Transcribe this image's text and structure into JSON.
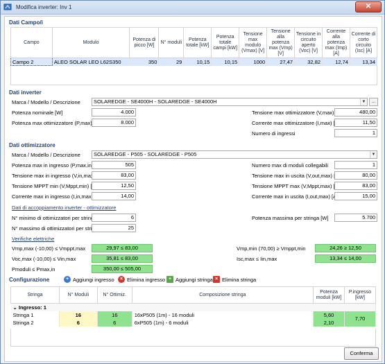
{
  "window": {
    "title": "Modifica inverter: Inv 1",
    "close_symbol": "✕"
  },
  "campo": {
    "section_title": "Dati Campo/i",
    "columns": [
      "Campo",
      "Modulo",
      "Potenza di picco [W]",
      "N° moduli",
      "Potenza totale [kW]",
      "Potenza totale campi [kW]",
      "Tensione max modulo (Vmax) [V]",
      "Tensione alla potenza max (Vmp) [V]",
      "Tensione in circuito aperto (Voc) [V]",
      "Corrente alla potenza max (Imp) [A]",
      "Corrente di corto circuito (Isc) [A]"
    ],
    "rows": [
      [
        "Campo 2",
        "ALEO SOLAR LEO L62S350",
        "350",
        "29",
        "10,15",
        "10,15",
        "1000",
        "27,47",
        "32,82",
        "12,74",
        "13,34"
      ]
    ]
  },
  "inverter": {
    "section_title": "Dati inverter",
    "brand_label": "Marca / Modello / Descrizione",
    "brand_value": "SOLAREDGE - SE4000H - SOLAREDGE - SE4000H",
    "dots": "...",
    "potenza_nominale_label": "Potenza nominale [W]",
    "potenza_nominale": "4.000",
    "potenza_max_label": "Potenza max ottimizzatore (P,max) [W]",
    "potenza_max": "8.000",
    "tensione_max_label": "Tensione max ottimizzatore (V,max) [V]",
    "tensione_max": "480,00",
    "corrente_max_label": "Corrente max ottimizzatore (I,max) [A]",
    "corrente_max": "11,50",
    "ingressi_label": "Numero di ingressi",
    "ingressi": "1"
  },
  "ottimizzatore": {
    "section_title": "Dati ottimizzatore",
    "brand_label": "Marca / Modello / Descrizione",
    "brand_value": "SOLAREDGE - P505 - SOLAREDGE - P505",
    "left": [
      {
        "label": "Potenza max in ingresso (P,max,in) [W]",
        "value": "505"
      },
      {
        "label": "Tensione max in ingresso (V,in,max) [V]",
        "value": "83,00"
      },
      {
        "label": "Tensione MPPT min (V,Mppt,min) [V]",
        "value": "12,50"
      },
      {
        "label": "Corrente max in ingresso (I,in,max) [A]",
        "value": "14,00"
      }
    ],
    "right": [
      {
        "label": "Numero max di moduli collegabili",
        "value": "1"
      },
      {
        "label": "Tensione max in uscita (V,out,max) [V]",
        "value": "80,00"
      },
      {
        "label": "Tensione MPPT max (V,Mppt,max) [V]",
        "value": "83,00"
      },
      {
        "label": "Corrente max in uscita (I,out,max) [A]",
        "value": "15,00"
      }
    ]
  },
  "accoppiamento": {
    "title": "Dati di accoppiamento inverter - ottimizzatore",
    "min_label": "N° minimo di ottimizzatori per stringa",
    "min_value": "6",
    "max_label": "N° massimo di ottimizzatori per stringa",
    "max_value": "25",
    "pot_label": "Potenza massima per stringa [W]",
    "pot_value": "5.700"
  },
  "verifiche": {
    "title": "Verifiche elettriche",
    "vmp_label": "Vmp,max (-10,00) ≤ Vmppt,max",
    "vmp_value": "29,97 ≤ 83,00",
    "voc_label": "Voc,max (-10,00) ≤ Vin,max",
    "voc_value": "35,81 ≤ 83,00",
    "pmod_label": "Pmoduli ≤ Pmax,in",
    "pmod_value": "350,00 ≤ 505,00",
    "vmpmin_label": "Vmp,min (70,00) ≥ Vmppt,min",
    "vmpmin_value": "24,26 ≥ 12,50",
    "isc_label": "Isc,max ≤ Iin,max",
    "isc_value": "13,34 ≤ 14,00"
  },
  "config": {
    "section_title": "Configurazione",
    "add_input": "Aggiungi ingresso",
    "del_input": "Elimina ingresso",
    "add_string": "Aggiungi stringa",
    "del_string": "Elimina stringa",
    "columns": [
      "Stringa",
      "N° Moduli",
      "N° Ottimiz.",
      "Composizione stringa",
      "Potenza moduli [kW]",
      "P.ingresso [kW]"
    ],
    "group_label": "Ingresso: 1",
    "group_toggle": "⌄",
    "rows": [
      {
        "name": "Stringa 1",
        "moduli": "16",
        "ottimiz": "16",
        "comp": "16xP505 (1m) - 16 moduli",
        "pot": "5,60"
      },
      {
        "name": "Stringa 2",
        "moduli": "6",
        "ottimiz": "6",
        "comp": "6xP505 (1m) - 6 moduli",
        "pot": "2,10"
      }
    ],
    "p_ingresso": "7,70"
  },
  "footer": {
    "confirm": "Conferma"
  },
  "colors": {
    "ok_green": "#8fe38f",
    "header_blue": "#1f3f73",
    "highlight_yellow": "#fff8c4"
  }
}
